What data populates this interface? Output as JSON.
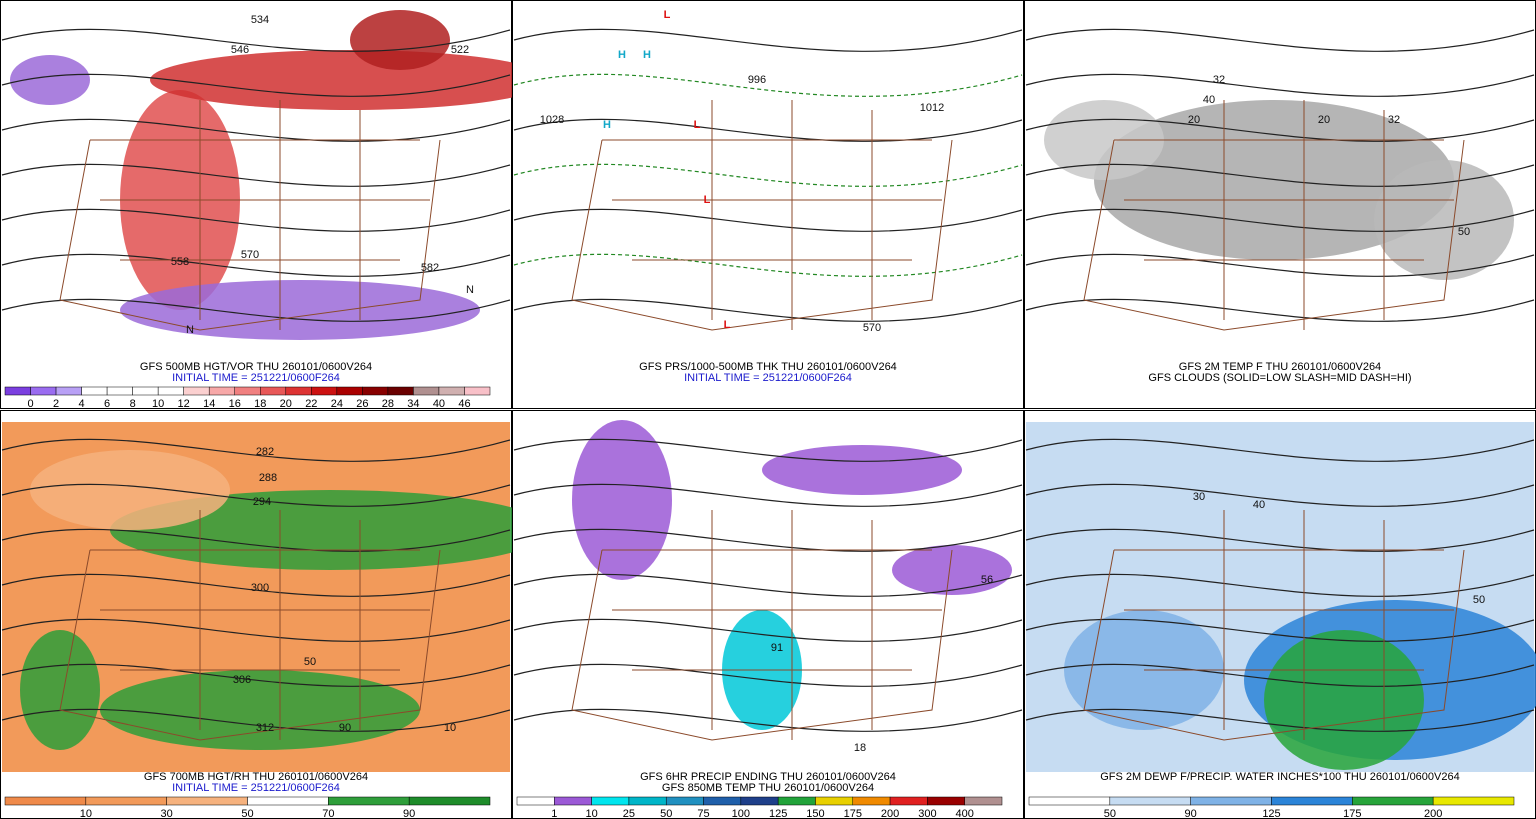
{
  "panels": [
    {
      "captions": [
        {
          "text": "GFS 500MB HGT/VOR THU 260101/0600V264",
          "color": "#000000"
        },
        {
          "text": "INITIAL TIME = 251221/0600F264",
          "color": "#1a1acc"
        }
      ],
      "colorbar": {
        "labels": [
          "0",
          "2",
          "4",
          "6",
          "8",
          "10",
          "12",
          "14",
          "16",
          "18",
          "20",
          "22",
          "24",
          "26",
          "28",
          "34",
          "40",
          "46"
        ],
        "colors": [
          "#7b3fe0",
          "#9a6cf0",
          "#b8a0f5",
          "#ffffff",
          "#ffffff",
          "#ffffff",
          "#ffffff",
          "#fbd0d0",
          "#f7a8a8",
          "#f08080",
          "#e85858",
          "#dd3333",
          "#cc1111",
          "#aa0000",
          "#880000",
          "#6a0000",
          "#b09090",
          "#d0b0b0",
          "#f8c0c8"
        ]
      },
      "map_labels": [
        "534",
        "546",
        "522",
        "558",
        "570",
        "582",
        "N",
        "N"
      ]
    },
    {
      "captions": [
        {
          "text": "GFS PRS/1000-500MB THK THU 260101/0600V264",
          "color": "#000000"
        },
        {
          "text": "INITIAL TIME = 251221/0600F264",
          "color": "#1a1acc"
        }
      ],
      "map_labels": [
        "H",
        "H",
        "H",
        "L",
        "L",
        "L",
        "L",
        "1028",
        "1012",
        "996",
        "570"
      ]
    },
    {
      "captions": [
        {
          "text": "GFS 2M TEMP F THU 260101/0600V264",
          "color": "#000000"
        },
        {
          "text": "GFS CLOUDS (SOLID=LOW SLASH=MID DASH=HI)",
          "color": "#000000"
        }
      ],
      "map_labels": [
        "32",
        "20",
        "40",
        "32",
        "20",
        "50"
      ]
    },
    {
      "captions": [
        {
          "text": "GFS 700MB HGT/RH THU 260101/0600V264",
          "color": "#000000"
        },
        {
          "text": "INITIAL TIME = 251221/0600F264",
          "color": "#1a1acc"
        }
      ],
      "colorbar": {
        "labels": [
          "10",
          "30",
          "50",
          "70",
          "90"
        ],
        "colors": [
          "#ef8a4a",
          "#f29a5a",
          "#f6b27e",
          "#ffffff",
          "#2e9e3a",
          "#1e8c2a"
        ]
      },
      "map_labels": [
        "282",
        "288",
        "294",
        "300",
        "306",
        "312",
        "50",
        "90",
        "10"
      ]
    },
    {
      "captions": [
        {
          "text": "GFS 6HR PRECIP ENDING THU 260101/0600V264",
          "color": "#000000"
        },
        {
          "text": "GFS 850MB TEMP THU 260101/0600V264",
          "color": "#000000"
        }
      ],
      "colorbar": {
        "labels": [
          "1",
          "10",
          "25",
          "50",
          "75",
          "100",
          "125",
          "150",
          "175",
          "200",
          "300",
          "400"
        ],
        "colors": [
          "#ffffff",
          "#9b59d6",
          "#00e5ee",
          "#00b5c8",
          "#2090c0",
          "#1f5faa",
          "#1e3f8a",
          "#22a33a",
          "#e8d000",
          "#f08a00",
          "#e02020",
          "#990000",
          "#b09090"
        ]
      },
      "map_labels": [
        "91",
        "56",
        "18"
      ]
    },
    {
      "captions": [
        {
          "text": "GFS 2M DEWP F/PRECIP. WATER INCHES*100 THU 260101/0600V264",
          "color": "#000000"
        }
      ],
      "colorbar": {
        "labels": [
          "50",
          "90",
          "125",
          "175",
          "200"
        ],
        "colors": [
          "#ffffff",
          "#c6dcf2",
          "#7fb2e6",
          "#2b84d8",
          "#27a43a",
          "#e8e800"
        ]
      },
      "map_labels": [
        "30",
        "40",
        "50"
      ]
    }
  ]
}
